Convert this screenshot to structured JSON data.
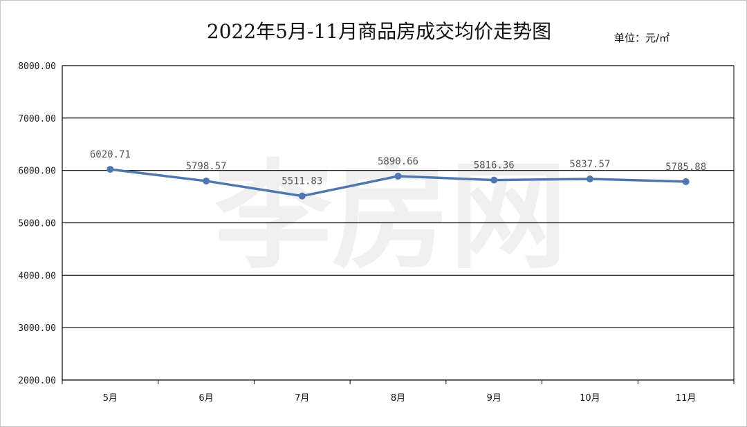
{
  "chart_data": {
    "type": "line",
    "title": "2022年5月-11月商品房成交均价走势图",
    "unit_label": "单位：元/㎡",
    "categories": [
      "5月",
      "6月",
      "7月",
      "8月",
      "9月",
      "10月",
      "11月"
    ],
    "series": [
      {
        "values": [
          6020.71,
          5798.57,
          5511.83,
          5890.66,
          5816.36,
          5837.57,
          5785.88
        ],
        "data_labels": [
          "6020.71",
          "5798.57",
          "5511.83",
          "5890.66",
          "5816.36",
          "5837.57",
          "5785.88"
        ],
        "color": "#4f78b0"
      }
    ],
    "ylim": [
      2000,
      8000
    ],
    "yticks": [
      2000,
      3000,
      4000,
      5000,
      6000,
      7000,
      8000
    ],
    "ytick_labels": [
      "2000.00",
      "3000.00",
      "4000.00",
      "5000.00",
      "6000.00",
      "7000.00",
      "8000.00"
    ],
    "grid": true,
    "xlabel": "",
    "ylabel": ""
  },
  "watermark": "李房网"
}
